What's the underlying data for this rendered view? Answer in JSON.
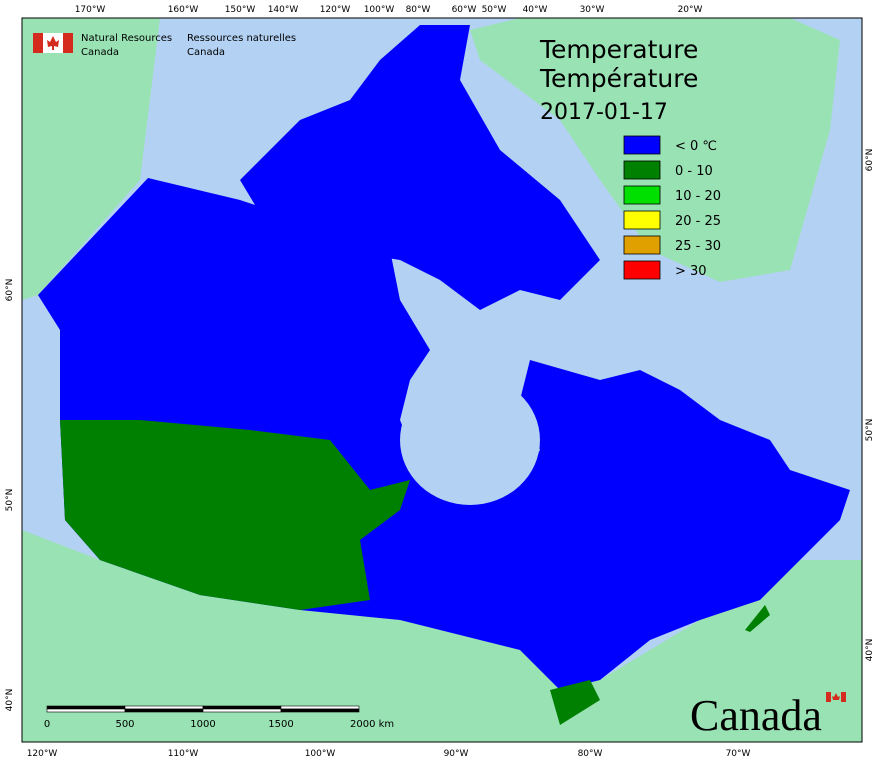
{
  "header": {
    "en": [
      "Natural Resources",
      "Canada"
    ],
    "fr": [
      "Ressources naturelles",
      "Canada"
    ]
  },
  "title": [
    "Temperature",
    "Température"
  ],
  "date": "2017-01-17",
  "legend": [
    {
      "label": "< 0 ℃",
      "color": "#0000ff"
    },
    {
      "label": "0 - 10",
      "color": "#008000"
    },
    {
      "label": "10 - 20",
      "color": "#00e000"
    },
    {
      "label": "20 - 25",
      "color": "#ffff00"
    },
    {
      "label": "25 - 30",
      "color": "#e0a000"
    },
    {
      "label": "> 30",
      "color": "#ff0000"
    }
  ],
  "top_labels": [
    "170°W",
    "160°W",
    "150°W",
    "140°W",
    "120°W",
    "100°W",
    "80°W",
    "60°W",
    "50°W",
    "40°W",
    "30°W",
    "20°W"
  ],
  "bottom_labels": [
    "120°W",
    "110°W",
    "100°W",
    "90°W",
    "80°W",
    "70°W"
  ],
  "left_labels": [
    "60°N",
    "50°N",
    "40°N"
  ],
  "right_labels": [
    "60°N",
    "50°N",
    "40°N"
  ],
  "scale_bar": [
    "0",
    "500",
    "1000",
    "1500",
    "2000 km"
  ],
  "wordmark": "Canada"
}
